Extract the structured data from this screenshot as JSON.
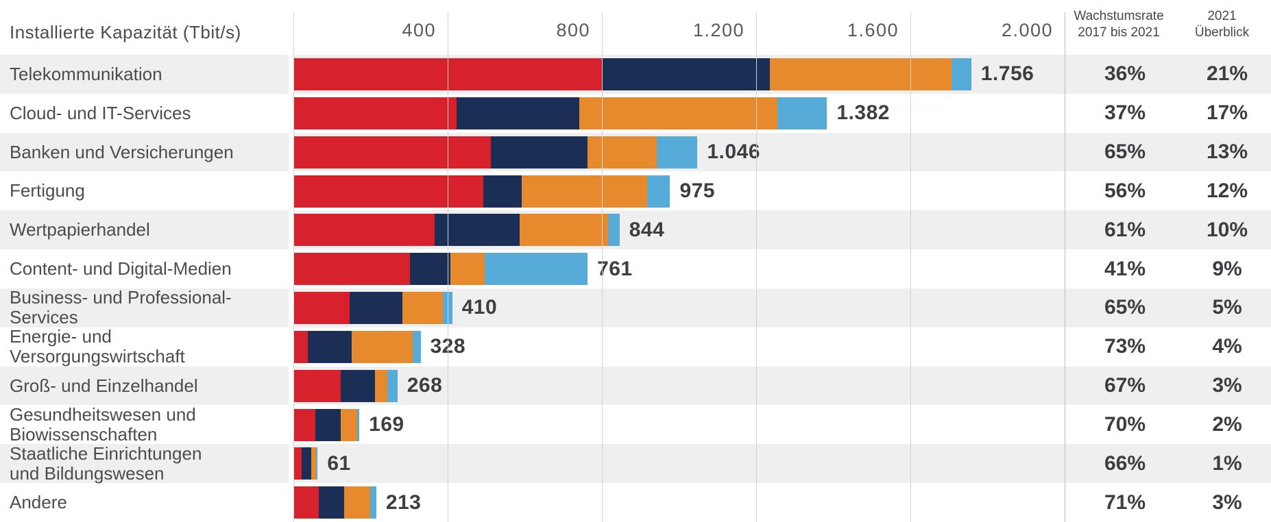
{
  "axis": {
    "title": "Installierte Kapazität (Tbit/s)",
    "tick_labels": [
      "400",
      "800",
      "1.200",
      "1.600",
      "2.000"
    ]
  },
  "columns": {
    "growth": {
      "line1": "Wachstumsrate",
      "line2": "2017 bis 2021"
    },
    "overview": {
      "line1": "2021",
      "line2": "Überblick"
    }
  },
  "colors": {
    "red": "#d7212d",
    "navy": "#1b2e55",
    "orange": "#e78a2d",
    "blue": "#56abd8",
    "stripe": "#efefef",
    "gridline": "#d2d2d3",
    "separator": "#b9babc",
    "text_dark": "#3d3e40",
    "text_label": "#4b4c4e"
  },
  "chart_data": {
    "type": "bar",
    "orientation": "horizontal",
    "title": "Installierte Kapazität (Tbit/s)",
    "xlim": [
      0,
      2000
    ],
    "x_ticks": [
      400,
      800,
      1200,
      1600,
      2000
    ],
    "grid": true,
    "legend": "none",
    "categories": [
      "Telekommunikation",
      "Cloud- und IT-Services",
      "Banken und Versicherungen",
      "Fertigung",
      "Wertpapierhandel",
      "Content- und Digital-Medien",
      "Business- und Professional-Services",
      "Energie- und Versorgungswirtschaft",
      "Groß- und Einzelhandel",
      "Gesundheitswesen und Biowissenschaften",
      "Staatliche Einrichtungen und Bildungswesen",
      "Andere"
    ],
    "category_lines": [
      [
        "Telekommunikation"
      ],
      [
        "Cloud- und IT-Services"
      ],
      [
        "Banken und Versicherungen"
      ],
      [
        "Fertigung"
      ],
      [
        "Wertpapierhandel"
      ],
      [
        "Content- und Digital-Medien"
      ],
      [
        "Business- und Professional-",
        "Services"
      ],
      [
        "Energie- und",
        "Versorgungswirtschaft"
      ],
      [
        "Groß- und Einzelhandel"
      ],
      [
        "Gesundheitswesen und",
        "Biowissenschaften"
      ],
      [
        "Staatliche Einrichtungen",
        "und Bildungswesen"
      ],
      [
        "Andere"
      ]
    ],
    "totals": [
      1756,
      1382,
      1046,
      975,
      844,
      761,
      410,
      328,
      268,
      169,
      61,
      213
    ],
    "totals_formatted": [
      "1.756",
      "1.382",
      "1.046",
      "975",
      "844",
      "761",
      "410",
      "328",
      "268",
      "169",
      "61",
      "213"
    ],
    "series": [
      {
        "name": "segment-red",
        "color": "#d7212d",
        "values": [
          800,
          422,
          510,
          490,
          365,
          300,
          144,
          35,
          120,
          55,
          20,
          64
        ]
      },
      {
        "name": "segment-navy",
        "color": "#1b2e55",
        "values": [
          433,
          318,
          250,
          100,
          220,
          105,
          137,
          115,
          90,
          66,
          25,
          66
        ]
      },
      {
        "name": "segment-orange",
        "color": "#e78a2d",
        "values": [
          471,
          513,
          181,
          325,
          230,
          90,
          105,
          158,
          31,
          42,
          11,
          67
        ]
      },
      {
        "name": "segment-blue",
        "color": "#56abd8",
        "values": [
          52,
          129,
          105,
          60,
          29,
          266,
          24,
          20,
          27,
          6,
          5,
          16
        ]
      }
    ],
    "growth_rate_2017_2021": [
      "36%",
      "37%",
      "65%",
      "56%",
      "61%",
      "41%",
      "65%",
      "73%",
      "67%",
      "70%",
      "66%",
      "71%"
    ],
    "overview_2021_share": [
      "21%",
      "17%",
      "13%",
      "12%",
      "10%",
      "9%",
      "5%",
      "4%",
      "3%",
      "2%",
      "1%",
      "3%"
    ]
  }
}
